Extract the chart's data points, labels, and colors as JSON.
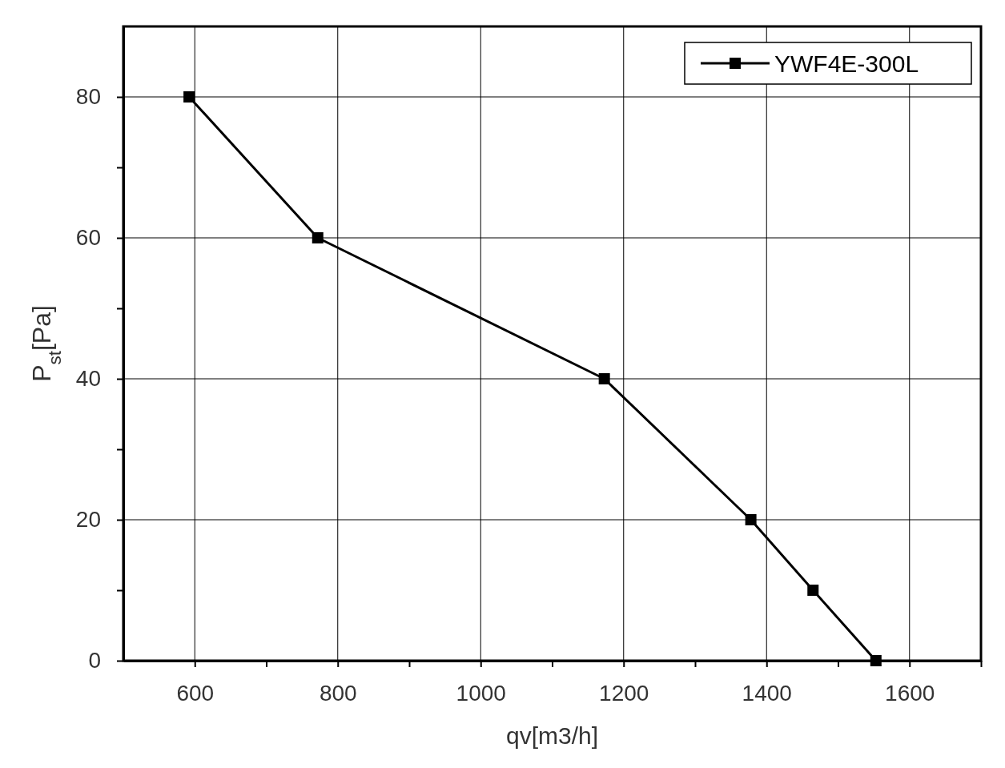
{
  "chart_data": {
    "type": "line",
    "xlabel": "qv[m3/h]",
    "ylabel": "P$_{st}$[Pa]",
    "xlim": [
      500,
      1700
    ],
    "ylim": [
      0,
      90
    ],
    "xticks": [
      600,
      {
        "value": 700,
        "label": null
      },
      800,
      {
        "value": 900,
        "label": null
      },
      1000,
      {
        "value": 1100,
        "label": null
      },
      1200,
      {
        "value": 1300,
        "label": null
      },
      1400,
      {
        "value": 1500,
        "label": null
      },
      1600,
      {
        "value": 1700,
        "label": null
      }
    ],
    "yticks": [
      0,
      {
        "value": 10,
        "label": null
      },
      20,
      {
        "value": 30,
        "label": null
      },
      40,
      {
        "value": 50,
        "label": null
      },
      60,
      {
        "value": 70,
        "label": null
      },
      80
    ],
    "grid": true,
    "legend": "top right",
    "marker": "square",
    "line_style": "solid",
    "series": [
      {
        "name": "YWF4E-300L",
        "color": "#000000",
        "x": [
          592,
          772,
          1173,
          1378,
          1465,
          1553
        ],
        "values": [
          80,
          60,
          40,
          20,
          10,
          0
        ]
      }
    ]
  }
}
